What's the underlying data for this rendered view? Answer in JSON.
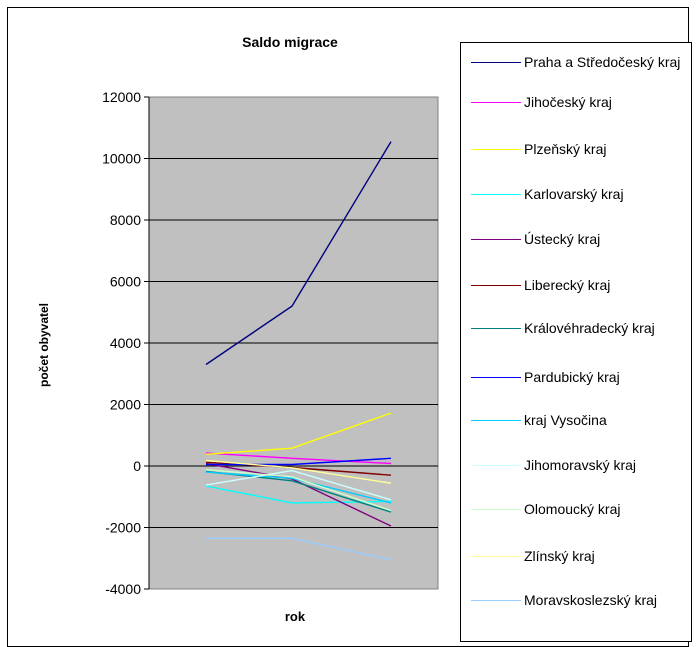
{
  "chart_data": {
    "type": "line",
    "title": "Saldo migrace",
    "xlabel": "rok",
    "ylabel": "počet obyvatel",
    "ylim": [
      -4000,
      12000
    ],
    "yticks": [
      -4000,
      -2000,
      0,
      2000,
      4000,
      6000,
      8000,
      10000,
      12000
    ],
    "x": [
      1,
      2,
      3
    ],
    "grid": true,
    "legend_position": "right",
    "plot_background": "#c0c0c0",
    "series": [
      {
        "name": "Praha a Středočeský kraj",
        "color": "#000080",
        "values": [
          3300,
          5200,
          10550
        ]
      },
      {
        "name": "Jihočeský kraj",
        "color": "#ff00ff",
        "values": [
          420,
          250,
          80
        ]
      },
      {
        "name": "Plzeňský kraj",
        "color": "#ffff00",
        "values": [
          380,
          580,
          1720
        ]
      },
      {
        "name": "Karlovarský kraj",
        "color": "#00ffff",
        "values": [
          -650,
          -1200,
          -1150
        ]
      },
      {
        "name": "Ústecký kraj",
        "color": "#800080",
        "values": [
          80,
          -420,
          -1950
        ]
      },
      {
        "name": "Liberecký kraj",
        "color": "#800000",
        "values": [
          120,
          -50,
          -300
        ]
      },
      {
        "name": "Královéhradecký kraj",
        "color": "#008080",
        "values": [
          -180,
          -480,
          -1500
        ]
      },
      {
        "name": "Pardubický kraj",
        "color": "#0000ff",
        "values": [
          50,
          50,
          250
        ]
      },
      {
        "name": "kraj Vysočina",
        "color": "#00ccff",
        "values": [
          -200,
          -400,
          -1200
        ]
      },
      {
        "name": "Jihomoravský kraj",
        "color": "#ccffff",
        "values": [
          -620,
          -150,
          -1100
        ]
      },
      {
        "name": "Olomoucký kraj",
        "color": "#ccffcc",
        "values": [
          -120,
          -350,
          -1450
        ]
      },
      {
        "name": "Zlínský kraj",
        "color": "#ffff99",
        "values": [
          180,
          -60,
          -560
        ]
      },
      {
        "name": "Moravskoslezský kraj",
        "color": "#99ccff",
        "values": [
          -2350,
          -2350,
          -3050
        ]
      }
    ]
  }
}
